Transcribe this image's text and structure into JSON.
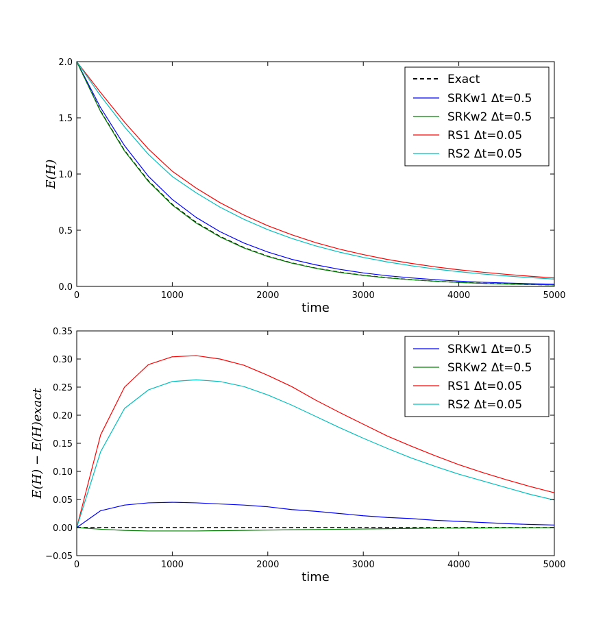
{
  "chart_data": [
    {
      "type": "line",
      "xlabel": "time",
      "ylabel": "E(H)",
      "xlim": [
        0,
        5000
      ],
      "ylim": [
        0,
        2.0
      ],
      "xticks": [
        "0",
        "1000",
        "2000",
        "3000",
        "4000",
        "5000"
      ],
      "yticks": [
        "0.0",
        "0.5",
        "1.0",
        "1.5",
        "2.0"
      ],
      "x": [
        0,
        250,
        500,
        750,
        1000,
        1250,
        1500,
        1750,
        2000,
        2250,
        2500,
        2750,
        3000,
        3250,
        3500,
        3750,
        4000,
        4250,
        4500,
        4750,
        5000
      ],
      "legend_loc": "upper right",
      "series": [
        {
          "name": "Exact",
          "label": "Exact",
          "color": "#000000",
          "dash": "6,4",
          "values": [
            2.0,
            1.56,
            1.21,
            0.94,
            0.73,
            0.57,
            0.445,
            0.346,
            0.269,
            0.209,
            0.163,
            0.127,
            0.099,
            0.077,
            0.06,
            0.046,
            0.036,
            0.028,
            0.022,
            0.017,
            0.013
          ]
        },
        {
          "name": "SRKw1",
          "label": "SRKw1 Δt=0.5",
          "color": "#0000ff",
          "values": [
            2.0,
            1.59,
            1.253,
            0.98,
            0.774,
            0.614,
            0.487,
            0.386,
            0.306,
            0.241,
            0.192,
            0.152,
            0.12,
            0.095,
            0.076,
            0.06,
            0.047,
            0.037,
            0.03,
            0.024,
            0.019
          ]
        },
        {
          "name": "SRKw2",
          "label": "SRKw2 Δt=0.5",
          "color": "#008000",
          "values": [
            2.0,
            1.555,
            1.205,
            0.934,
            0.724,
            0.564,
            0.44,
            0.342,
            0.266,
            0.207,
            0.161,
            0.125,
            0.097,
            0.076,
            0.059,
            0.046,
            0.035,
            0.027,
            0.021,
            0.017,
            0.013
          ]
        },
        {
          "name": "RS1",
          "label": "RS1 Δt=0.05",
          "color": "#ff0000",
          "values": [
            2.0,
            1.725,
            1.462,
            1.223,
            1.025,
            0.875,
            0.745,
            0.635,
            0.54,
            0.46,
            0.39,
            0.332,
            0.283,
            0.24,
            0.205,
            0.174,
            0.148,
            0.126,
            0.107,
            0.09,
            0.075
          ]
        },
        {
          "name": "RS2",
          "label": "RS2 Δt=0.05",
          "color": "#00bfbf",
          "values": [
            2.0,
            1.695,
            1.42,
            1.175,
            0.978,
            0.833,
            0.705,
            0.597,
            0.505,
            0.427,
            0.361,
            0.305,
            0.258,
            0.218,
            0.184,
            0.155,
            0.131,
            0.11,
            0.093,
            0.078,
            0.065
          ]
        }
      ]
    },
    {
      "type": "line",
      "xlabel": "time",
      "ylabel": "E(H) − E(H)exact",
      "xlim": [
        0,
        5000
      ],
      "ylim": [
        -0.05,
        0.35
      ],
      "xticks": [
        "0",
        "1000",
        "2000",
        "3000",
        "4000",
        "5000"
      ],
      "yticks": [
        "−0.05",
        "0.00",
        "0.05",
        "0.10",
        "0.15",
        "0.20",
        "0.25",
        "0.30",
        "0.35"
      ],
      "x": [
        0,
        250,
        500,
        750,
        1000,
        1250,
        1500,
        1750,
        2000,
        2250,
        2500,
        2750,
        3000,
        3250,
        3500,
        3750,
        4000,
        4250,
        4500,
        4750,
        5000
      ],
      "legend_loc": "upper right",
      "series": [
        {
          "name": "Exact",
          "label": "",
          "color": "#000000",
          "dash": "6,4",
          "values": [
            0,
            0,
            0,
            0,
            0,
            0,
            0,
            0,
            0,
            0,
            0,
            0,
            0,
            0,
            0,
            0,
            0,
            0,
            0,
            0,
            0
          ]
        },
        {
          "name": "SRKw1",
          "label": "SRKw1 Δt=0.5",
          "color": "#0000ff",
          "values": [
            0.0,
            0.03,
            0.04,
            0.044,
            0.045,
            0.044,
            0.042,
            0.04,
            0.037,
            0.032,
            0.029,
            0.025,
            0.021,
            0.018,
            0.016,
            0.013,
            0.011,
            0.009,
            0.007,
            0.0055,
            0.0045
          ]
        },
        {
          "name": "SRKw2",
          "label": "SRKw2 Δt=0.5",
          "color": "#008000",
          "values": [
            0.0,
            -0.003,
            -0.005,
            -0.006,
            -0.006,
            -0.006,
            -0.0055,
            -0.005,
            -0.0045,
            -0.004,
            -0.0035,
            -0.003,
            -0.0025,
            -0.002,
            -0.0015,
            -0.001,
            -0.001,
            -0.0008,
            -0.0005,
            -0.0003,
            -0.0002
          ]
        },
        {
          "name": "RS1",
          "label": "RS1 Δt=0.05",
          "color": "#ff0000",
          "values": [
            0.0,
            0.165,
            0.25,
            0.29,
            0.304,
            0.306,
            0.3,
            0.289,
            0.271,
            0.251,
            0.227,
            0.205,
            0.184,
            0.163,
            0.145,
            0.128,
            0.112,
            0.098,
            0.085,
            0.073,
            0.062
          ]
        },
        {
          "name": "RS2",
          "label": "RS2 Δt=0.05",
          "color": "#00bfbf",
          "values": [
            0.0,
            0.135,
            0.212,
            0.245,
            0.26,
            0.263,
            0.26,
            0.251,
            0.236,
            0.218,
            0.198,
            0.178,
            0.159,
            0.141,
            0.124,
            0.109,
            0.095,
            0.083,
            0.071,
            0.059,
            0.049
          ]
        }
      ]
    }
  ]
}
